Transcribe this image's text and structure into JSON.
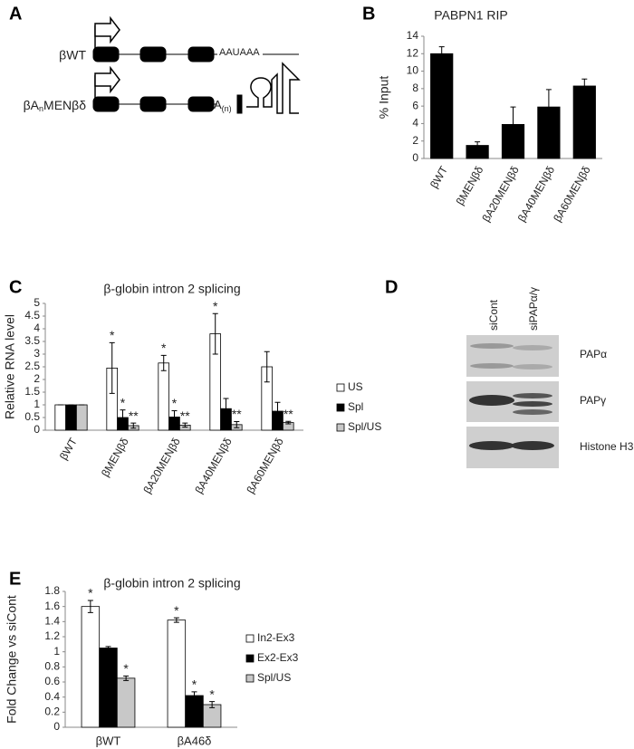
{
  "panel_labels": [
    "A",
    "B",
    "C",
    "D",
    "E"
  ],
  "diagram": {
    "wt_label": "βWT",
    "wt_signal": "AAUAAA",
    "mut_label": [
      "βA",
      "n",
      "MENβδ"
    ],
    "mut_tail": [
      "A",
      "(n)"
    ]
  },
  "blot": {
    "lanes": [
      "siCont",
      "siPAPα/γ"
    ],
    "bands": [
      "PAPα",
      "PAPγ",
      "Histone H3"
    ]
  },
  "chart_data": [
    {
      "type": "bar",
      "title": "PABPN1  RIP",
      "y_label": "% Input",
      "categories": [
        "βWT",
        "βMENβδ",
        "βA20MENβδ",
        "βA40MENβδ",
        "βA60MENβδ"
      ],
      "values": [
        12,
        1.5,
        3.9,
        5.9,
        8.3
      ],
      "errors": [
        0.8,
        0.4,
        2.0,
        2.0,
        0.8
      ],
      "color": "#000000",
      "ylim": [
        0,
        14
      ],
      "yticks": [
        0,
        2,
        4,
        6,
        8,
        10,
        12,
        14
      ],
      "grid": false,
      "label_rotation": -60
    },
    {
      "type": "bar",
      "title": "β-globin intron 2 splicing",
      "y_label": "Relative RNA level",
      "categories": [
        "βWT",
        "βMENβδ",
        "βA20MENβδ",
        "βA40MENβδ",
        "βA60MENβδ"
      ],
      "series": [
        {
          "name": "US",
          "color": "#ffffff",
          "values": [
            1,
            2.45,
            2.65,
            3.8,
            2.5
          ],
          "errors": [
            0,
            1.0,
            0.3,
            0.8,
            0.6
          ],
          "significance": [
            null,
            "*",
            "*",
            "*",
            null
          ]
        },
        {
          "name": "Spl",
          "color": "#000000",
          "values": [
            1,
            0.5,
            0.52,
            0.85,
            0.75
          ],
          "errors": [
            0,
            0.3,
            0.25,
            0.4,
            0.35
          ],
          "significance": [
            null,
            "*",
            "*",
            null,
            null
          ]
        },
        {
          "name": "Spl/US",
          "color": "#c8c8c8",
          "values": [
            1,
            0.18,
            0.2,
            0.22,
            0.3
          ],
          "errors": [
            0,
            0.1,
            0.08,
            0.12,
            0.05
          ],
          "significance": [
            null,
            "**",
            "**",
            "**",
            "**"
          ]
        }
      ],
      "ylim": [
        0,
        5
      ],
      "yticks": [
        0,
        0.5,
        1,
        1.5,
        2,
        2.5,
        3,
        3.5,
        4,
        4.5,
        5
      ],
      "grid": false,
      "legend": "right",
      "label_rotation": -60
    },
    {
      "type": "bar",
      "title": "β-globin intron 2 splicing",
      "y_label": "Fold Change vs siCont",
      "categories": [
        "βWT",
        "βA46δ"
      ],
      "series": [
        {
          "name": "In2-Ex3",
          "color": "#ffffff",
          "values": [
            1.6,
            1.42
          ],
          "errors": [
            0.08,
            0.03
          ],
          "significance": [
            "*",
            "*"
          ]
        },
        {
          "name": "Ex2-Ex3",
          "color": "#000000",
          "values": [
            1.05,
            0.42
          ],
          "errors": [
            0.02,
            0.05
          ],
          "significance": [
            null,
            "*"
          ]
        },
        {
          "name": "Spl/US",
          "color": "#c8c8c8",
          "values": [
            0.65,
            0.3
          ],
          "errors": [
            0.03,
            0.04
          ],
          "significance": [
            "*",
            "*"
          ]
        }
      ],
      "ylim": [
        0,
        1.8
      ],
      "yticks": [
        0,
        0.2,
        0.4,
        0.6,
        0.8,
        1,
        1.2,
        1.4,
        1.6,
        1.8
      ],
      "grid": false,
      "legend": "right",
      "label_rotation": 0
    }
  ]
}
